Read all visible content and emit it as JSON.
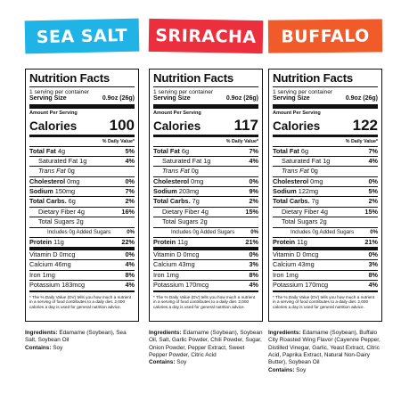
{
  "labels": [
    {
      "banner": "SEA SALT",
      "banner_color": "#1fb3e6",
      "title": "Nutrition Facts",
      "servings_per_container": "1 serving per container",
      "serving_size_label": "Serving Size",
      "serving_size_value": "0.9oz (26g)",
      "amount_per_serving": "Amount Per Serving",
      "calories_label": "Calories",
      "calories_value": "100",
      "daily_value_header": "% Daily Value*",
      "rows": [
        {
          "label": "Total Fat",
          "amount": "4g",
          "dv": "5%",
          "bold": true,
          "indent": 0
        },
        {
          "label": "Saturated Fat",
          "amount": "1g",
          "dv": "4%",
          "bold": false,
          "indent": 1
        },
        {
          "label": "Trans Fat",
          "amount": "0g",
          "dv": "",
          "bold": false,
          "indent": 1,
          "italic": true
        },
        {
          "label": "Cholesterol",
          "amount": "0mg",
          "dv": "0%",
          "bold": true,
          "indent": 0
        },
        {
          "label": "Sodium",
          "amount": "150mg",
          "dv": "7%",
          "bold": true,
          "indent": 0
        },
        {
          "label": "Total Carbs.",
          "amount": "6g",
          "dv": "2%",
          "bold": true,
          "indent": 0
        },
        {
          "label": "Dietary Fiber",
          "amount": "4g",
          "dv": "16%",
          "bold": false,
          "indent": 1
        },
        {
          "label": "Total Sugars",
          "amount": "2g",
          "dv": "",
          "bold": false,
          "indent": 1
        },
        {
          "label": "Includes 0g Added Sugars",
          "amount": "",
          "dv": "0%",
          "bold": false,
          "indent": 2,
          "small": true
        },
        {
          "label": "Protein",
          "amount": "11g",
          "dv": "22%",
          "bold": true,
          "indent": 0,
          "thick": true
        },
        {
          "label": "Vitamin D",
          "amount": "0mcg",
          "dv": "0%",
          "bold": false,
          "indent": 0
        },
        {
          "label": "Calcium",
          "amount": "46mg",
          "dv": "4%",
          "bold": false,
          "indent": 0
        },
        {
          "label": "Iron",
          "amount": "1mg",
          "dv": "8%",
          "bold": false,
          "indent": 0
        },
        {
          "label": "Potassium",
          "amount": "183mcg",
          "dv": "4%",
          "bold": false,
          "indent": 0,
          "end": true
        }
      ],
      "footnote": "* The % Daily Value (DV) tells you how much a nutrient in a serving of food contributes to a daily diet. 2,000 calories a day is used for general nutrition advice.",
      "ingredients_label": "Ingredients:",
      "ingredients": "Edamame (Soybean), Sea Salt, Soybean Oil",
      "contains_label": "Contains:",
      "contains": "Soy"
    },
    {
      "banner": "SRIRACHA",
      "banner_color": "#ec2f3d",
      "title": "Nutrition Facts",
      "servings_per_container": "1 serving per container",
      "serving_size_label": "Serving Size",
      "serving_size_value": "0.9oz (26g)",
      "amount_per_serving": "Amount Per Serving",
      "calories_label": "Calories",
      "calories_value": "117",
      "daily_value_header": "% Daily Value*",
      "rows": [
        {
          "label": "Total Fat",
          "amount": "6g",
          "dv": "7%",
          "bold": true,
          "indent": 0
        },
        {
          "label": "Saturated Fat",
          "amount": "1g",
          "dv": "4%",
          "bold": false,
          "indent": 1
        },
        {
          "label": "Trans Fat",
          "amount": "0g",
          "dv": "",
          "bold": false,
          "indent": 1,
          "italic": true
        },
        {
          "label": "Cholesterol",
          "amount": "0mg",
          "dv": "0%",
          "bold": true,
          "indent": 0
        },
        {
          "label": "Sodium",
          "amount": "203mg",
          "dv": "9%",
          "bold": true,
          "indent": 0
        },
        {
          "label": "Total Carbs.",
          "amount": "7g",
          "dv": "2%",
          "bold": true,
          "indent": 0
        },
        {
          "label": "Dietary Fiber",
          "amount": "4g",
          "dv": "15%",
          "bold": false,
          "indent": 1
        },
        {
          "label": "Total Sugars",
          "amount": "2g",
          "dv": "",
          "bold": false,
          "indent": 1
        },
        {
          "label": "Includes 0g Added Sugars",
          "amount": "",
          "dv": "0%",
          "bold": false,
          "indent": 2,
          "small": true
        },
        {
          "label": "Protein",
          "amount": "11g",
          "dv": "21%",
          "bold": true,
          "indent": 0,
          "thick": true
        },
        {
          "label": "Vitamin D",
          "amount": "0mcg",
          "dv": "0%",
          "bold": false,
          "indent": 0
        },
        {
          "label": "Calcium",
          "amount": "43mg",
          "dv": "3%",
          "bold": false,
          "indent": 0
        },
        {
          "label": "Iron",
          "amount": "1mg",
          "dv": "8%",
          "bold": false,
          "indent": 0
        },
        {
          "label": "Potassium",
          "amount": "170mcg",
          "dv": "4%",
          "bold": false,
          "indent": 0,
          "end": true
        }
      ],
      "footnote": "* The % Daily Value (DV) tells you how much a nutrient in a serving of food contributes to a daily diet. 2,000 calories a day is used for general nutrition advice.",
      "ingredients_label": "Ingredients:",
      "ingredients": "Edamame (Soybean), Soybean Oil, Salt, Garlic Powder, Chili Powder, Sugar, Onion Powder, Pepper Extract, Sweet Pepper Powder, Citric Acid",
      "contains_label": "Contains:",
      "contains": "Soy"
    },
    {
      "banner": "BUFFALO",
      "banner_color": "#f15a29",
      "title": "Nutrition Facts",
      "servings_per_container": "1 serving per container",
      "serving_size_label": "Serving Size",
      "serving_size_value": "0.9oz (26g)",
      "amount_per_serving": "Amount Per Serving",
      "calories_label": "Calories",
      "calories_value": "122",
      "daily_value_header": "% Daily Value*",
      "rows": [
        {
          "label": "Total Fat",
          "amount": "6g",
          "dv": "7%",
          "bold": true,
          "indent": 0
        },
        {
          "label": "Saturated Fat",
          "amount": "1g",
          "dv": "4%",
          "bold": false,
          "indent": 1
        },
        {
          "label": "Trans Fat",
          "amount": "0g",
          "dv": "",
          "bold": false,
          "indent": 1,
          "italic": true
        },
        {
          "label": "Cholesterol",
          "amount": "0mg",
          "dv": "0%",
          "bold": true,
          "indent": 0
        },
        {
          "label": "Sodium",
          "amount": "122mg",
          "dv": "5%",
          "bold": true,
          "indent": 0
        },
        {
          "label": "Total Carbs.",
          "amount": "7g",
          "dv": "2%",
          "bold": true,
          "indent": 0
        },
        {
          "label": "Dietary Fiber",
          "amount": "4g",
          "dv": "15%",
          "bold": false,
          "indent": 1
        },
        {
          "label": "Total Sugars",
          "amount": "2g",
          "dv": "",
          "bold": false,
          "indent": 1
        },
        {
          "label": "Includes 0g Added Sugars",
          "amount": "",
          "dv": "0%",
          "bold": false,
          "indent": 2,
          "small": true
        },
        {
          "label": "Protein",
          "amount": "11g",
          "dv": "21%",
          "bold": true,
          "indent": 0,
          "thick": true
        },
        {
          "label": "Vitamin D",
          "amount": "0mcg",
          "dv": "0%",
          "bold": false,
          "indent": 0
        },
        {
          "label": "Calcium",
          "amount": "43mg",
          "dv": "3%",
          "bold": false,
          "indent": 0
        },
        {
          "label": "Iron",
          "amount": "1mg",
          "dv": "8%",
          "bold": false,
          "indent": 0
        },
        {
          "label": "Potassium",
          "amount": "170mcg",
          "dv": "4%",
          "bold": false,
          "indent": 0,
          "end": true
        }
      ],
      "footnote": "* The % Daily Value (DV) tells you how much a nutrient in a serving of food contributes to a daily diet. 2,000 calories a day is used for general nutrition advice.",
      "ingredients_label": "Ingredients:",
      "ingredients": "Edamame (Soybean), Buffalo City Roasted Wing Flavor (Cayenne Pepper, Distilled Vinegar, Garlic, Yeast Extract, Citric Acid, Paprika Extract, Natural Non-Dairy Butter), Soybean Oil",
      "contains_label": "Contains:",
      "contains": "Soy"
    }
  ]
}
